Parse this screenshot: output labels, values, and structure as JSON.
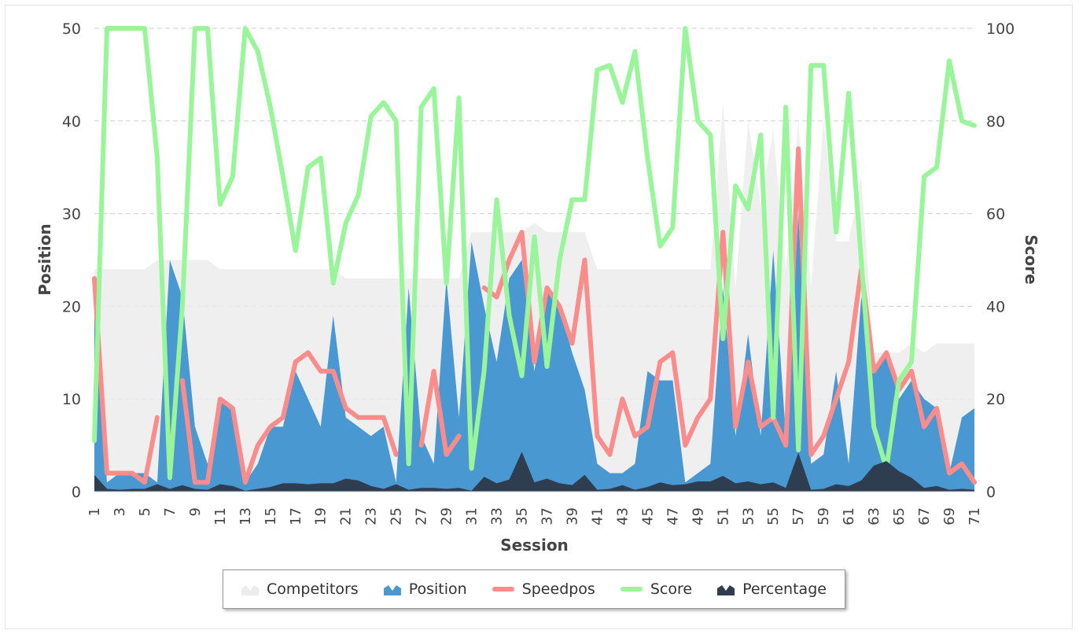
{
  "chart_data": {
    "type": "area",
    "xlabel": "Session",
    "ylabel_left": "Position",
    "ylabel_right": "Score",
    "ylim_left": [
      0,
      50
    ],
    "ylim_right": [
      0,
      100
    ],
    "yticks_left": [
      "0",
      "10",
      "20",
      "30",
      "40",
      "50"
    ],
    "yticks_right": [
      "0",
      "20",
      "40",
      "60",
      "80",
      "100"
    ],
    "x": [
      1,
      2,
      3,
      4,
      5,
      6,
      7,
      8,
      9,
      10,
      11,
      12,
      13,
      14,
      15,
      16,
      17,
      18,
      19,
      20,
      21,
      22,
      23,
      24,
      25,
      26,
      27,
      28,
      29,
      30,
      31,
      32,
      33,
      34,
      35,
      36,
      37,
      38,
      39,
      40,
      41,
      42,
      43,
      44,
      45,
      46,
      47,
      48,
      49,
      50,
      51,
      52,
      53,
      54,
      55,
      56,
      57,
      58,
      59,
      60,
      61,
      62,
      63,
      64,
      65,
      66,
      67,
      68,
      69,
      70,
      71
    ],
    "xticks": [
      "1",
      "3",
      "5",
      "7",
      "9",
      "11",
      "13",
      "15",
      "17",
      "19",
      "21",
      "23",
      "25",
      "27",
      "29",
      "31",
      "33",
      "35",
      "37",
      "39",
      "41",
      "43",
      "45",
      "47",
      "49",
      "51",
      "53",
      "55",
      "57",
      "59",
      "61",
      "63",
      "65",
      "67",
      "69",
      "71"
    ],
    "grid": true,
    "legend_position": "bottom",
    "series": [
      {
        "name": "Competitors",
        "kind": "area",
        "axis": "left",
        "color": "#ececec",
        "values": [
          24,
          24,
          24,
          24,
          24,
          25,
          25,
          25,
          25,
          25,
          24,
          24,
          24,
          24,
          24,
          24,
          24,
          24,
          24,
          24,
          23,
          23,
          23,
          23,
          23,
          23,
          23,
          23,
          23,
          23,
          28,
          28,
          28,
          28,
          28,
          29,
          28,
          28,
          28,
          28,
          24,
          24,
          24,
          24,
          24,
          24,
          24,
          24,
          24,
          24,
          42,
          22,
          40,
          31,
          39,
          24,
          40,
          22,
          40,
          27,
          27,
          34,
          15,
          15,
          15,
          16,
          15,
          16,
          16,
          16,
          16
        ]
      },
      {
        "name": "Position",
        "kind": "area",
        "axis": "left",
        "color": "#4a98d2",
        "values": [
          23,
          1,
          2,
          2,
          2,
          1,
          25,
          21,
          7,
          3,
          10,
          9,
          1,
          3,
          7,
          7,
          13,
          10,
          7,
          19,
          8,
          7,
          6,
          7,
          1,
          22,
          6,
          3,
          23,
          8,
          27,
          20,
          14,
          23,
          25,
          13,
          22,
          20,
          15,
          11,
          3,
          2,
          2,
          3,
          13,
          12,
          12,
          1,
          2,
          3,
          22,
          6,
          17,
          6,
          26,
          6,
          30,
          3,
          4,
          13,
          3,
          21,
          13,
          15,
          10,
          12,
          10,
          9,
          2,
          8,
          9
        ]
      },
      {
        "name": "Speedpos",
        "kind": "line",
        "axis": "left",
        "color": "#fb8c8c",
        "values": [
          23,
          2,
          2,
          2,
          1,
          8,
          null,
          12,
          1,
          1,
          10,
          9,
          1,
          5,
          7,
          8,
          14,
          15,
          13,
          13,
          9,
          8,
          8,
          8,
          4,
          null,
          5,
          13,
          4,
          6,
          null,
          22,
          21,
          25,
          28,
          14,
          22,
          20,
          16,
          25,
          6,
          4,
          10,
          6,
          7,
          14,
          15,
          5,
          8,
          10,
          28,
          7,
          14,
          7,
          8,
          5,
          37,
          4,
          6,
          10,
          14,
          24,
          13,
          15,
          11,
          13,
          7,
          9,
          2,
          3,
          1
        ]
      },
      {
        "name": "Score",
        "kind": "line",
        "axis": "right",
        "color": "#99f599",
        "values": [
          11,
          100,
          100,
          100,
          100,
          72,
          3,
          40,
          100,
          100,
          62,
          68,
          100,
          95,
          83,
          68,
          52,
          70,
          72,
          45,
          58,
          64,
          81,
          84,
          80,
          6,
          83,
          87,
          45,
          85,
          5,
          26,
          63,
          38,
          25,
          55,
          27,
          50,
          63,
          63,
          91,
          92,
          84,
          95,
          72,
          53,
          57,
          100,
          80,
          77,
          33,
          66,
          61,
          77,
          16,
          83,
          9,
          92,
          92,
          56,
          86,
          50,
          14,
          5,
          24,
          28,
          68,
          70,
          93,
          80,
          79
        ]
      },
      {
        "name": "Percentage",
        "kind": "area",
        "axis": "left",
        "color": "#2e3d4f",
        "values": [
          1.8,
          0.3,
          0.2,
          0.3,
          0.3,
          0.8,
          0.3,
          0.7,
          0.3,
          0.2,
          0.8,
          0.6,
          0.1,
          0.3,
          0.5,
          0.9,
          0.9,
          0.8,
          0.9,
          0.9,
          1.4,
          1.2,
          0.6,
          0.3,
          0.8,
          0.2,
          0.4,
          0.4,
          0.3,
          0.4,
          0.1,
          1.6,
          0.9,
          1.3,
          4.3,
          1.0,
          1.4,
          0.9,
          0.7,
          1.8,
          0.2,
          0.3,
          0.7,
          0.2,
          0.5,
          1.0,
          0.7,
          0.8,
          1.1,
          1.1,
          1.7,
          0.9,
          1.1,
          0.8,
          1.0,
          0.4,
          4.2,
          0.2,
          0.3,
          0.8,
          0.6,
          1.2,
          2.8,
          3.3,
          2.2,
          1.5,
          0.4,
          0.6,
          0.2,
          0.3,
          0.2
        ]
      }
    ]
  },
  "legend": {
    "items": [
      {
        "label": "Competitors",
        "color": "#ececec",
        "kind": "area"
      },
      {
        "label": "Position",
        "color": "#4a98d2",
        "kind": "area"
      },
      {
        "label": "Speedpos",
        "color": "#fb8c8c",
        "kind": "line"
      },
      {
        "label": "Score",
        "color": "#99f599",
        "kind": "line"
      },
      {
        "label": "Percentage",
        "color": "#2e3d4f",
        "kind": "area"
      }
    ]
  }
}
